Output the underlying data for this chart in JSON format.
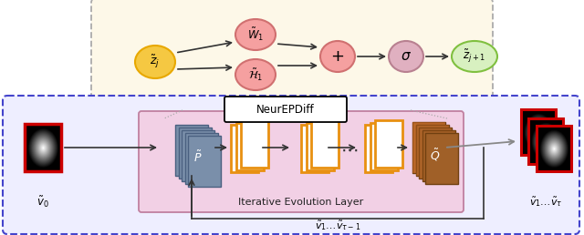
{
  "fig_width": 6.4,
  "fig_height": 2.58,
  "bg_color": "#ffffff",
  "top_box_bg": "#fdf8e8",
  "bottom_box_bg": "#eeeeff",
  "iter_layer_bg": "#f2d0e5",
  "node_zj_color": "#f5c842",
  "node_zj_edge": "#e8a800",
  "node_W1_color": "#f5a0a0",
  "node_W1_edge": "#d07070",
  "node_H1_color": "#f5a0a0",
  "node_H1_edge": "#d07070",
  "node_plus_color": "#f5a0a0",
  "node_plus_edge": "#d07070",
  "node_sigma_color": "#e0b0c0",
  "node_sigma_edge": "#b88090",
  "node_zj1_color": "#d8f0c0",
  "node_zj1_edge": "#80c040",
  "arrow_color": "#333333",
  "dashed_box_color1": "#aaaaaa",
  "dashed_box_color2": "#4444cc",
  "p_stack_color": "#7a8faa",
  "p_stack_edge": "#4a6080",
  "q_stack_color": "#a06028",
  "q_stack_edge": "#704010",
  "orange_page_edge": "#e89010",
  "image_border": "#cc0000",
  "iter_label": "Iterative Evolution Layer",
  "feedback_label": "$\\tilde{v}_1 \\ldots \\tilde{v}_{\\tau-1}$",
  "output_label": "$\\tilde{v}_1 \\ldots \\tilde{v}_{\\tau}$",
  "input_label": "$\\tilde{v}_0$",
  "neurepdiff_label": "NeurEPDiff"
}
